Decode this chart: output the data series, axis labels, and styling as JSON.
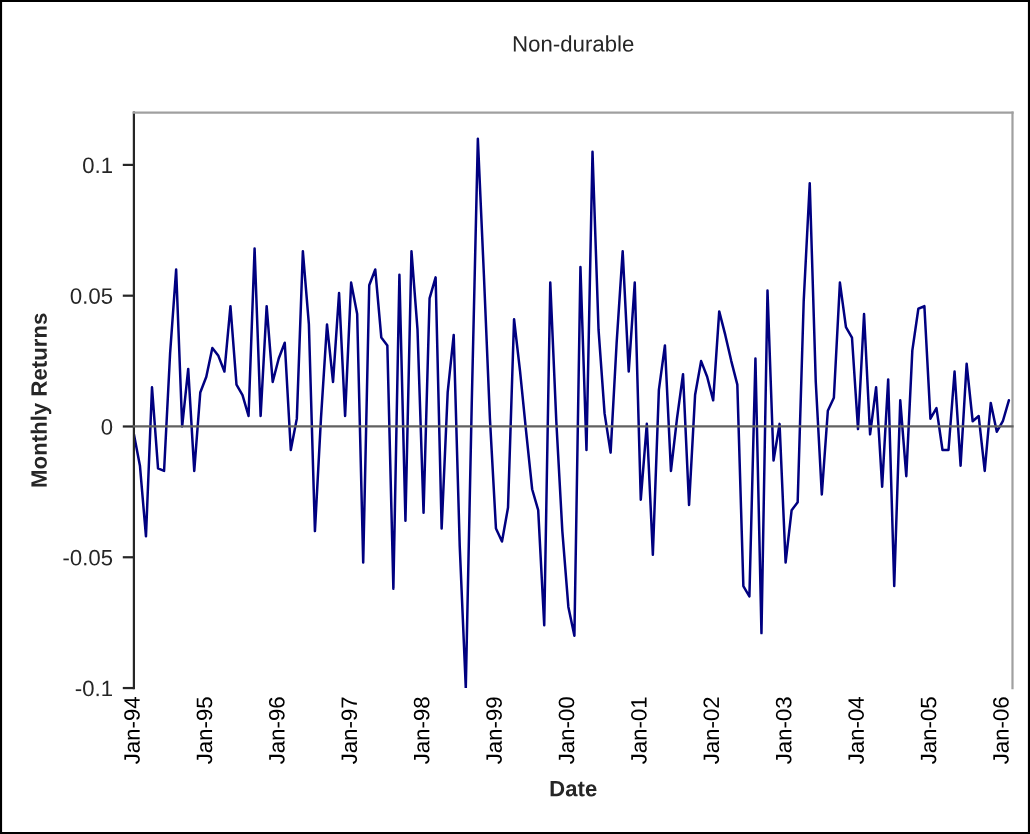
{
  "chart_data": {
    "type": "line",
    "title": "Non-durable",
    "xlabel": "Date",
    "ylabel": "Monthly Returns",
    "categories": [
      "Jan-94",
      null,
      null,
      null,
      null,
      null,
      null,
      null,
      null,
      null,
      null,
      null,
      "Jan-95",
      null,
      null,
      null,
      null,
      null,
      null,
      null,
      null,
      null,
      null,
      null,
      "Jan-96",
      null,
      null,
      null,
      null,
      null,
      null,
      null,
      null,
      null,
      null,
      null,
      "Jan-97",
      null,
      null,
      null,
      null,
      null,
      null,
      null,
      null,
      null,
      null,
      null,
      "Jan-98",
      null,
      null,
      null,
      null,
      null,
      null,
      null,
      null,
      null,
      null,
      null,
      "Jan-99",
      null,
      null,
      null,
      null,
      null,
      null,
      null,
      null,
      null,
      null,
      null,
      "Jan-00",
      null,
      null,
      null,
      null,
      null,
      null,
      null,
      null,
      null,
      null,
      null,
      "Jan-01",
      null,
      null,
      null,
      null,
      null,
      null,
      null,
      null,
      null,
      null,
      null,
      "Jan-02",
      null,
      null,
      null,
      null,
      null,
      null,
      null,
      null,
      null,
      null,
      null,
      "Jan-03",
      null,
      null,
      null,
      null,
      null,
      null,
      null,
      null,
      null,
      null,
      null,
      "Jan-04",
      null,
      null,
      null,
      null,
      null,
      null,
      null,
      null,
      null,
      null,
      null,
      "Jan-05",
      null,
      null,
      null,
      null,
      null,
      null,
      null,
      null,
      null,
      null,
      null,
      "Jan-06",
      null
    ],
    "series": [
      {
        "color": "#000080",
        "values": [
          -0.003,
          -0.015,
          -0.042,
          0.015,
          -0.016,
          -0.017,
          0.028,
          0.06,
          0.0,
          0.022,
          -0.017,
          0.013,
          0.019,
          0.03,
          0.027,
          0.021,
          0.046,
          0.016,
          0.012,
          0.004,
          0.068,
          0.004,
          0.046,
          0.017,
          0.026,
          0.032,
          -0.009,
          0.003,
          0.067,
          0.039,
          -0.04,
          0.003,
          0.039,
          0.017,
          0.051,
          0.004,
          0.055,
          0.043,
          -0.052,
          0.054,
          0.06,
          0.034,
          0.031,
          -0.062,
          0.058,
          -0.036,
          0.067,
          0.037,
          -0.033,
          0.049,
          0.057,
          -0.039,
          0.013,
          0.035,
          -0.046,
          -0.1,
          0.01,
          0.11,
          0.058,
          0.003,
          -0.039,
          -0.044,
          -0.031,
          0.041,
          0.021,
          -0.002,
          -0.024,
          -0.032,
          -0.076,
          0.055,
          0.002,
          -0.04,
          -0.069,
          -0.08,
          0.061,
          -0.009,
          0.105,
          0.037,
          0.005,
          -0.01,
          0.032,
          0.067,
          0.021,
          0.055,
          -0.028,
          0.001,
          -0.049,
          0.014,
          0.031,
          -0.017,
          0.003,
          0.02,
          -0.03,
          0.012,
          0.025,
          0.019,
          0.01,
          0.044,
          0.035,
          0.025,
          0.016,
          -0.061,
          -0.065,
          0.026,
          -0.079,
          0.052,
          -0.013,
          0.001,
          -0.052,
          -0.032,
          -0.029,
          0.048,
          0.093,
          0.017,
          -0.026,
          0.006,
          0.011,
          0.055,
          0.038,
          0.034,
          -0.001,
          0.043,
          -0.003,
          0.015,
          -0.023,
          0.018,
          -0.061,
          0.01,
          -0.019,
          0.029,
          0.045,
          0.046,
          0.003,
          0.007,
          -0.009,
          -0.009,
          0.021,
          -0.015,
          0.024,
          0.002,
          0.004,
          -0.017,
          0.009,
          -0.002,
          0.002,
          0.01
        ]
      }
    ],
    "ylim": [
      -0.1,
      0.12
    ],
    "yticks": [
      -0.1,
      -0.05,
      0,
      0.05,
      0.1
    ],
    "line_style": "solid"
  }
}
